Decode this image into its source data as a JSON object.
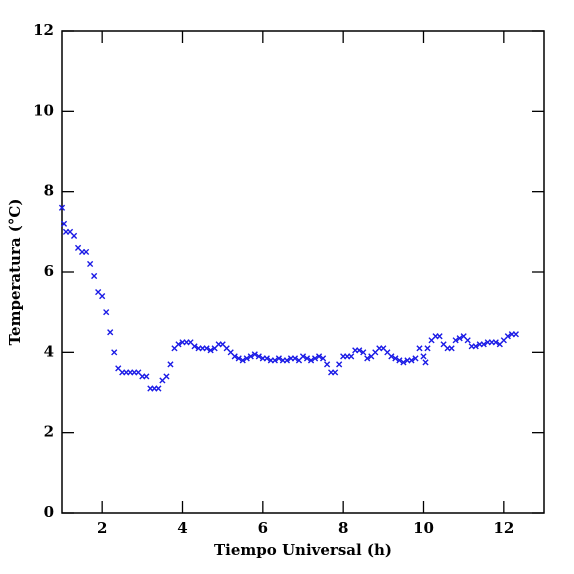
{
  "chart_data": {
    "type": "scatter",
    "x_label": "Tiempo Universal (h)",
    "y_label": "Temperatura (°C)",
    "xlim": [
      1,
      13
    ],
    "ylim": [
      0,
      12
    ],
    "xticks": [
      2,
      4,
      6,
      8,
      10,
      12
    ],
    "yticks": [
      0,
      2,
      4,
      6,
      8,
      10,
      12
    ],
    "series": [
      {
        "color": "#1a1ae6",
        "x": [
          1.0,
          1.05,
          1.1,
          1.2,
          1.3,
          1.4,
          1.5,
          1.6,
          1.7,
          1.8,
          1.9,
          2.0,
          2.1,
          2.2,
          2.3,
          2.4,
          2.5,
          2.6,
          2.7,
          2.8,
          2.9,
          3.0,
          3.1,
          3.2,
          3.3,
          3.4,
          3.5,
          3.6,
          3.7,
          3.8,
          3.9,
          4.0,
          4.1,
          4.2,
          4.3,
          4.4,
          4.5,
          4.6,
          4.7,
          4.8,
          4.9,
          5.0,
          5.1,
          5.2,
          5.3,
          5.4,
          5.5,
          5.6,
          5.7,
          5.8,
          5.9,
          6.0,
          6.1,
          6.2,
          6.3,
          6.4,
          6.5,
          6.6,
          6.7,
          6.8,
          6.9,
          7.0,
          7.1,
          7.2,
          7.3,
          7.4,
          7.5,
          7.6,
          7.7,
          7.8,
          7.9,
          8.0,
          8.1,
          8.2,
          8.3,
          8.4,
          8.5,
          8.6,
          8.7,
          8.8,
          8.9,
          9.0,
          9.1,
          9.2,
          9.3,
          9.4,
          9.5,
          9.6,
          9.7,
          9.8,
          9.9,
          10.0,
          10.05,
          10.1,
          10.2,
          10.3,
          10.4,
          10.5,
          10.6,
          10.7,
          10.8,
          10.9,
          11.0,
          11.1,
          11.2,
          11.3,
          11.4,
          11.5,
          11.6,
          11.7,
          11.8,
          11.9,
          12.0,
          12.1,
          12.2,
          12.3
        ],
        "values": [
          7.6,
          7.2,
          7.0,
          7.0,
          6.9,
          6.6,
          6.5,
          6.5,
          6.2,
          5.9,
          5.5,
          5.4,
          5.0,
          4.5,
          4.0,
          3.6,
          3.5,
          3.5,
          3.5,
          3.5,
          3.5,
          3.4,
          3.4,
          3.1,
          3.1,
          3.1,
          3.3,
          3.4,
          3.7,
          4.1,
          4.2,
          4.25,
          4.25,
          4.25,
          4.15,
          4.1,
          4.1,
          4.1,
          4.05,
          4.1,
          4.2,
          4.2,
          4.1,
          4.0,
          3.9,
          3.85,
          3.8,
          3.85,
          3.9,
          3.95,
          3.9,
          3.85,
          3.85,
          3.8,
          3.8,
          3.85,
          3.8,
          3.8,
          3.85,
          3.85,
          3.8,
          3.9,
          3.85,
          3.8,
          3.85,
          3.9,
          3.85,
          3.7,
          3.5,
          3.5,
          3.7,
          3.9,
          3.9,
          3.9,
          4.05,
          4.05,
          4.0,
          3.85,
          3.9,
          4.0,
          4.1,
          4.1,
          4.0,
          3.9,
          3.85,
          3.8,
          3.75,
          3.8,
          3.8,
          3.85,
          4.1,
          3.9,
          3.75,
          4.1,
          4.3,
          4.4,
          4.4,
          4.2,
          4.1,
          4.1,
          4.3,
          4.35,
          4.4,
          4.3,
          4.15,
          4.15,
          4.2,
          4.2,
          4.25,
          4.25,
          4.25,
          4.2,
          4.3,
          4.4,
          4.45,
          4.45
        ]
      }
    ]
  }
}
